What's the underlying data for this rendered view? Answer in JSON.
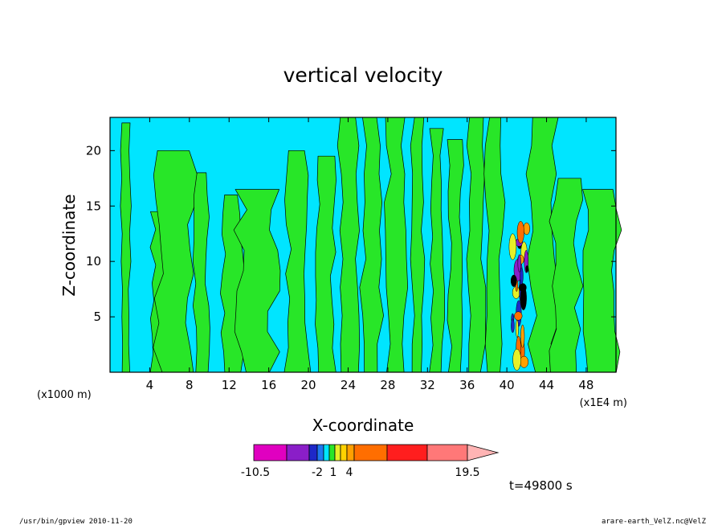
{
  "chart_data": {
    "type": "heatmap",
    "title": "vertical velocity",
    "xlabel": "X-coordinate",
    "ylabel": "Z-coordinate",
    "x_unit_left": "(x1000 m)",
    "x_unit_right": "(x1E4 m)",
    "xlim": [
      0,
      51
    ],
    "ylim": [
      0,
      23
    ],
    "x_ticks": [
      4,
      8,
      12,
      16,
      20,
      24,
      28,
      32,
      36,
      40,
      44,
      48
    ],
    "y_ticks": [
      5,
      10,
      15,
      20
    ],
    "background_class_color": "#00e5ff",
    "colorbar": {
      "tick_labels": [
        "-10.5",
        "-2",
        "1",
        "4",
        "19.5"
      ],
      "colors": [
        "#e000c0",
        "#8a1ec8",
        "#1e28c8",
        "#1e78f0",
        "#00e5ff",
        "#28e628",
        "#e6f028",
        "#ffd200",
        "#ffa000",
        "#ff6e00",
        "#ff1e1e",
        "#ff7878"
      ],
      "extend_color": "#ffb4b4"
    },
    "green_updraft_bands": [
      {
        "x": [
          1.2,
          2.0
        ],
        "z_top": 22.5
      },
      {
        "x": [
          4.3,
          5.8
        ],
        "z_top": 14.5
      },
      {
        "x": [
          5.0,
          8.2
        ],
        "z_top": 20.0
      },
      {
        "x": [
          8.5,
          9.8
        ],
        "z_top": 18.0
      },
      {
        "x": [
          11.5,
          13.2
        ],
        "z_top": 16.0
      },
      {
        "x": [
          13.2,
          16.6
        ],
        "z_top": 16.5
      },
      {
        "x": [
          18.0,
          20.0
        ],
        "z_top": 20.0
      },
      {
        "x": [
          21.0,
          22.5
        ],
        "z_top": 19.5
      },
      {
        "x": [
          23.2,
          24.8
        ],
        "z_top": 23.0
      },
      {
        "x": [
          25.5,
          27.2
        ],
        "z_top": 23.0
      },
      {
        "x": [
          28.0,
          29.7
        ],
        "z_top": 23.0
      },
      {
        "x": [
          30.5,
          31.6
        ],
        "z_top": 23.0
      },
      {
        "x": [
          32.4,
          33.5
        ],
        "z_top": 22.0
      },
      {
        "x": [
          34.2,
          35.4
        ],
        "z_top": 21.0
      },
      {
        "x": [
          36.2,
          37.6
        ],
        "z_top": 23.0
      },
      {
        "x": [
          38.0,
          39.5
        ],
        "z_top": 23.0
      },
      {
        "x": [
          42.5,
          45.0
        ],
        "z_top": 23.0
      },
      {
        "x": [
          44.8,
          47.2
        ],
        "z_top": 17.5
      },
      {
        "x": [
          48.2,
          51.0
        ],
        "z_top": 16.5
      }
    ],
    "convective_core": {
      "x_center": 41.3,
      "z_base": 0.5,
      "z_top": 13.0
    }
  },
  "time_label": "t=49800 s",
  "footer": {
    "left": "/usr/bin/gpview   2010-11-20",
    "right": "arare-earth_VelZ.nc@VelZ"
  }
}
